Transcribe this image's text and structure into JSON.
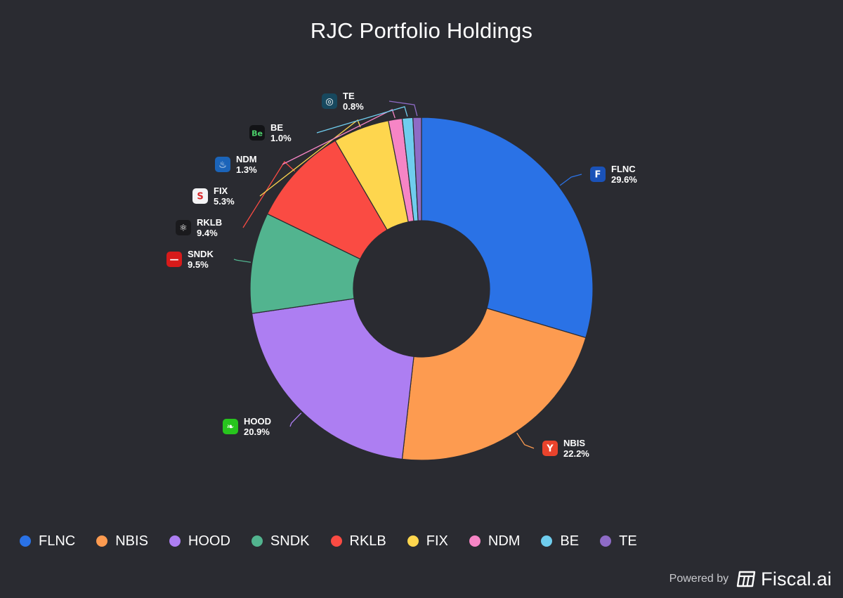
{
  "chart_data": {
    "type": "pie",
    "style": "donut",
    "title": "RJC Portfolio Holdings",
    "slices": [
      {
        "label": "FLNC",
        "value": 29.6,
        "value_label": "29.6%",
        "color": "#2a72e6",
        "icon": "fluence-logo-icon",
        "icon_bg": "#1a52b8",
        "icon_glyph": "F"
      },
      {
        "label": "NBIS",
        "value": 22.2,
        "value_label": "22.2%",
        "color": "#fd9b50",
        "icon": "nebius-logo-icon",
        "icon_bg": "#e9432c",
        "icon_glyph": "Y"
      },
      {
        "label": "HOOD",
        "value": 20.9,
        "value_label": "20.9%",
        "color": "#ad7ef2",
        "icon": "robinhood-feather-icon",
        "icon_bg": "#27c51d",
        "icon_glyph": "❧"
      },
      {
        "label": "SNDK",
        "value": 9.5,
        "value_label": "9.5%",
        "color": "#52b48f",
        "icon": "sandisk-logo-icon",
        "icon_bg": "#d71a1a",
        "icon_glyph": "—"
      },
      {
        "label": "RKLB",
        "value": 9.4,
        "value_label": "9.4%",
        "color": "#fa4b43",
        "icon": "rocket-lab-atom-icon",
        "icon_bg": "#1a1a1d",
        "icon_glyph": "⚛"
      },
      {
        "label": "FIX",
        "value": 5.3,
        "value_label": "5.3%",
        "color": "#fed64e",
        "icon": "comfort-systems-logo-icon",
        "icon_bg": "#f4f4f6",
        "icon_glyph": "S"
      },
      {
        "label": "NDM",
        "value": 1.3,
        "value_label": "1.3%",
        "color": "#f685c5",
        "icon": "bull-logo-icon",
        "icon_bg": "#1b64b9",
        "icon_glyph": "♨"
      },
      {
        "label": "BE",
        "value": 1.0,
        "value_label": "1.0%",
        "color": "#6fcdee",
        "icon": "bloom-energy-logo-icon",
        "icon_bg": "#121316",
        "icon_glyph": "Be"
      },
      {
        "label": "TE",
        "value": 0.8,
        "value_label": "0.8%",
        "color": "#8e6bc6",
        "icon": "swirl-logo-icon",
        "icon_bg": "#17485e",
        "icon_glyph": "◎"
      }
    ],
    "legend_position": "bottom"
  },
  "footer": {
    "powered_label": "Powered by",
    "brand": "Fiscal.ai"
  }
}
